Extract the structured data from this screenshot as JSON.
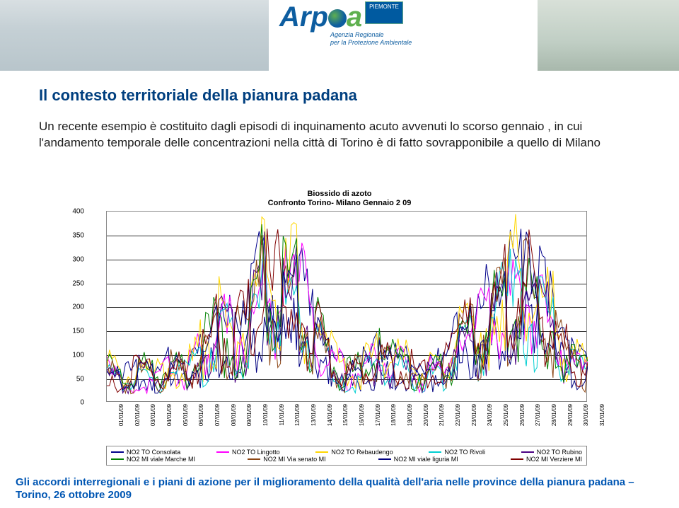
{
  "logo": {
    "flag": "PIEMONTE",
    "sub1": "Agenzia Regionale",
    "sub2": "per la Protezione Ambientale"
  },
  "title": "Il contesto territoriale della pianura padana",
  "paragraph": "Un recente esempio è costituito dagli episodi di inquinamento acuto avvenuti lo scorso gennaio , in cui l'andamento temporale delle concentrazioni nella città di Torino è di fatto sovrapponibile a quello di Milano",
  "chart": {
    "type": "line",
    "title_line1": "Biossido di azoto",
    "title_line2": "Confronto Torino- Milano Gennaio 2 09",
    "ylim": [
      0,
      400
    ],
    "ytick_step": 50,
    "yticks": [
      0,
      50,
      100,
      150,
      200,
      250,
      300,
      350,
      400
    ],
    "x_labels": [
      "01/01/09",
      "02/01/09",
      "03/01/09",
      "04/01/09",
      "05/01/09",
      "06/01/09",
      "07/01/09",
      "08/01/09",
      "09/01/09",
      "10/01/09",
      "11/01/09",
      "12/01/09",
      "13/01/09",
      "14/01/09",
      "15/01/09",
      "16/01/09",
      "17/01/09",
      "18/01/09",
      "19/01/09",
      "20/01/09",
      "21/01/09",
      "22/01/09",
      "23/01/09",
      "24/01/09",
      "25/01/09",
      "26/01/09",
      "27/01/09",
      "28/01/09",
      "29/01/09",
      "30/01/09",
      "31/01/09"
    ],
    "background_color": "#ffffff",
    "grid_color": "#333333",
    "series": [
      {
        "name": "NO2 TO Consolata",
        "color": "#00008b",
        "data": [
          90,
          60,
          95,
          70,
          100,
          85,
          150,
          210,
          180,
          240,
          350,
          290,
          310,
          200,
          120,
          85,
          95,
          130,
          110,
          100,
          85,
          95,
          205,
          180,
          260,
          290,
          330,
          270,
          200,
          110,
          90
        ]
      },
      {
        "name": "NO2 TO Lingotto",
        "color": "#ff00ff",
        "data": [
          80,
          55,
          85,
          65,
          90,
          80,
          140,
          195,
          170,
          225,
          320,
          270,
          290,
          185,
          110,
          80,
          88,
          120,
          100,
          92,
          78,
          88,
          190,
          170,
          245,
          275,
          310,
          255,
          185,
          100,
          82
        ]
      },
      {
        "name": "NO2 TO Rebaudengo",
        "color": "#ffd700",
        "data": [
          95,
          65,
          100,
          75,
          105,
          90,
          160,
          220,
          190,
          255,
          360,
          300,
          325,
          210,
          125,
          90,
          100,
          135,
          115,
          105,
          90,
          98,
          215,
          190,
          270,
          300,
          345,
          280,
          210,
          115,
          95
        ]
      },
      {
        "name": "NO2 TO Rivoli",
        "color": "#00ced1",
        "data": [
          70,
          50,
          78,
          60,
          82,
          72,
          125,
          180,
          155,
          205,
          300,
          250,
          265,
          170,
          100,
          72,
          80,
          110,
          92,
          85,
          70,
          80,
          175,
          155,
          225,
          255,
          290,
          235,
          170,
          92,
          75
        ]
      },
      {
        "name": "NO2 TO Rubino",
        "color": "#4b0082",
        "data": [
          75,
          52,
          82,
          62,
          86,
          76,
          132,
          188,
          162,
          215,
          310,
          260,
          278,
          178,
          105,
          76,
          84,
          115,
          96,
          88,
          74,
          84,
          182,
          162,
          235,
          265,
          300,
          245,
          178,
          96,
          78
        ]
      },
      {
        "name": "NO2 MI viale Marche MI",
        "color": "#008000",
        "data": [
          88,
          62,
          92,
          70,
          96,
          84,
          145,
          200,
          175,
          230,
          335,
          280,
          300,
          195,
          115,
          82,
          92,
          125,
          105,
          98,
          82,
          92,
          198,
          175,
          252,
          282,
          320,
          262,
          195,
          106,
          86
        ]
      },
      {
        "name": "NO2 MI Via senato MI",
        "color": "#8b4513",
        "data": [
          82,
          56,
          86,
          66,
          90,
          78,
          136,
          190,
          165,
          218,
          315,
          262,
          282,
          180,
          108,
          78,
          86,
          118,
          98,
          90,
          76,
          86,
          185,
          165,
          240,
          268,
          305,
          248,
          180,
          98,
          80
        ]
      },
      {
        "name": "NO2 MI viale liguria MI",
        "color": "#000080",
        "data": [
          78,
          54,
          80,
          64,
          88,
          76,
          130,
          186,
          160,
          212,
          308,
          256,
          272,
          175,
          103,
          75,
          82,
          113,
          95,
          87,
          73,
          82,
          180,
          160,
          232,
          262,
          298,
          242,
          175,
          95,
          77
        ]
      },
      {
        "name": "NO2 MI Verziere MI",
        "color": "#800000",
        "data": [
          85,
          60,
          90,
          68,
          94,
          82,
          142,
          196,
          172,
          226,
          328,
          274,
          294,
          190,
          112,
          80,
          90,
          122,
          103,
          95,
          80,
          90,
          194,
          172,
          248,
          278,
          315,
          258,
          190,
          103,
          84
        ]
      }
    ],
    "legend": {
      "row1": [
        {
          "label": "NO2 TO Consolata",
          "color": "#00008b"
        },
        {
          "label": "NO2 TO Lingotto",
          "color": "#ff00ff"
        },
        {
          "label": "NO2 TO Rebaudengo",
          "color": "#ffd700"
        },
        {
          "label": "NO2 TO Rivoli",
          "color": "#00ced1"
        },
        {
          "label": "NO2 TO Rubino",
          "color": "#4b0082"
        }
      ],
      "row2": [
        {
          "label": "NO2 MI viale Marche MI",
          "color": "#008000"
        },
        {
          "label": "NO2 MI Via senato MI",
          "color": "#8b4513"
        },
        {
          "label": "NO2 MI viale liguria MI",
          "color": "#000080"
        },
        {
          "label": "NO2 MI Verziere MI",
          "color": "#800000"
        }
      ]
    }
  },
  "footer": "Gli accordi interregionali e i piani di azione per il miglioramento della qualità dell'aria nelle province della pianura padana – Torino, 26 ottobre 2009"
}
